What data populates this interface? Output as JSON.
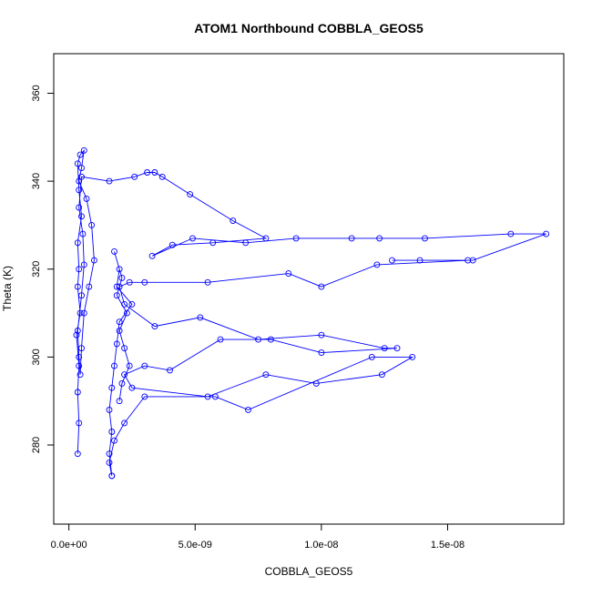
{
  "chart_data": {
    "type": "line",
    "title": "ATOM1 Northbound COBBLA_GEOS5",
    "xlabel": "COBBLA_GEOS5",
    "ylabel": "Theta (K)",
    "xlim": [
      -6e-10,
      1.96e-08
    ],
    "ylim": [
      262,
      369
    ],
    "x_ticks": [
      0,
      5e-09,
      1e-08,
      1.5e-08
    ],
    "x_tick_labels": [
      "0.0e+00",
      "5.0e-09",
      "1.0e-08",
      "1.5e-08"
    ],
    "y_ticks": [
      280,
      300,
      320,
      340,
      360
    ],
    "y_tick_labels": [
      "280",
      "300",
      "320",
      "340",
      "360"
    ],
    "grid": false,
    "marker": "open-circle",
    "series": [
      {
        "name": "ATOM1 Northbound",
        "color": "#0000ff",
        "x": [
          3.5e-10,
          4e-10,
          3.5e-10,
          4e-10,
          3e-10,
          4.5e-10,
          3.5e-10,
          4e-10,
          3.5e-10,
          5e-10,
          4e-10,
          3.5e-10,
          4.5e-10,
          6e-10,
          5e-10,
          4e-10,
          7e-10,
          9e-10,
          1e-09,
          8e-10,
          6e-10,
          5e-10,
          4.5e-10,
          4e-10,
          3.5e-10,
          5e-10,
          6e-10,
          5.5e-10,
          4e-10,
          5e-10,
          1.6e-09,
          2.6e-09,
          3.1e-09,
          3.4e-09,
          3.7e-09,
          4.8e-09,
          6.5e-09,
          7.8e-09,
          5.7e-09,
          4.1e-09,
          3.3e-09,
          4.9e-09,
          7e-09,
          9e-09,
          1.12e-08,
          1.23e-08,
          1.41e-08,
          1.75e-08,
          1.89e-08,
          1.6e-08,
          1.28e-08,
          1.39e-08,
          1.58e-08,
          1.22e-08,
          1e-08,
          8.7e-09,
          5.5e-09,
          3e-09,
          2.4e-09,
          2e-09,
          2.2e-09,
          3.4e-09,
          5.2e-09,
          7.5e-09,
          1e-08,
          1.25e-08,
          1.3e-08,
          1e-08,
          8e-09,
          6e-09,
          4e-09,
          3e-09,
          2.2e-09,
          2.5e-09,
          5.5e-09,
          7.8e-09,
          9.8e-09,
          1.24e-08,
          1.36e-08,
          1.2e-08,
          7.1e-09,
          5.8e-09,
          3e-09,
          2.2e-09,
          1.8e-09,
          1.6e-09,
          1.7e-09,
          1.7e-09,
          1.6e-09,
          1.7e-09,
          1.6e-09,
          1.7e-09,
          1.8e-09,
          1.9e-09,
          2e-09,
          2.5e-09,
          1.9e-09,
          2e-09,
          1.8e-09,
          2.1e-09,
          1.9e-09,
          2.3e-09,
          2e-09,
          2.2e-09,
          2.4e-09,
          2.1e-09,
          2e-09
        ],
        "y": [
          278,
          285,
          292,
          298,
          305,
          310,
          316,
          320,
          326,
          332,
          338,
          344,
          346,
          347,
          343,
          340,
          336,
          330,
          322,
          316,
          310,
          302,
          296,
          300,
          306,
          314,
          321,
          328,
          334,
          341,
          340,
          341,
          342,
          342,
          341,
          337,
          331,
          327,
          326,
          325.5,
          323,
          327,
          326,
          327,
          327,
          327,
          327,
          328,
          328,
          322,
          322,
          322,
          322,
          321,
          316,
          319,
          317,
          317,
          317,
          316,
          312,
          307,
          309,
          304,
          305,
          302,
          302,
          301,
          304,
          304,
          297,
          298,
          296,
          293,
          291,
          296,
          294,
          296,
          300,
          300,
          288,
          291,
          291,
          285,
          281,
          276,
          273,
          273,
          278,
          283,
          288,
          293,
          298,
          303,
          308,
          312,
          316,
          320,
          324,
          318,
          314,
          310,
          306,
          302,
          298,
          294,
          290
        ]
      }
    ]
  }
}
